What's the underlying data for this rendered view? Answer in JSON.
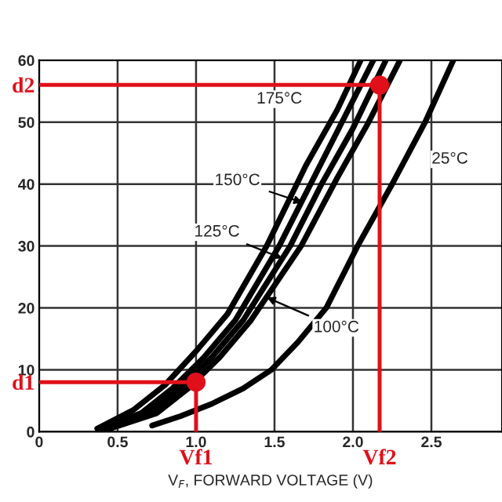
{
  "chart_data": {
    "type": "line",
    "xlabel": "V$_{F}$, FORWARD VOLTAGE (V)",
    "xlim": [
      0,
      2.95
    ],
    "xticks": [
      0,
      {
        "value": 0.5,
        "label": "0.5"
      },
      {
        "value": 1,
        "label": "1.0"
      },
      {
        "value": 1.5,
        "label": "1.5"
      },
      {
        "value": 2,
        "label": "2.0"
      },
      {
        "value": 2.5,
        "label": "2.5"
      }
    ],
    "ylim": [
      0,
      60
    ],
    "yticks": [
      0,
      10,
      20,
      30,
      40,
      50,
      60
    ],
    "grid": true,
    "marker": "none",
    "line_style": "solid",
    "series": [
      {
        "color": "#000000",
        "x": [
          0.37,
          0.6,
          0.8,
          1.0,
          1.2,
          1.45,
          1.7,
          1.9,
          2.05
        ],
        "values": [
          0.5,
          3.5,
          7.5,
          13,
          19,
          30,
          43,
          52,
          60
        ]
      },
      {
        "color": "#000000",
        "x": [
          0.4,
          0.65,
          0.85,
          1.05,
          1.25,
          1.53,
          1.75,
          1.95,
          2.13
        ],
        "values": [
          0.5,
          3,
          7,
          12,
          18,
          30,
          41,
          51,
          60
        ]
      },
      {
        "color": "#000000",
        "x": [
          0.42,
          0.7,
          0.9,
          1.1,
          1.3,
          1.6,
          1.8,
          2.0,
          2.21
        ],
        "values": [
          0.5,
          3,
          7,
          12,
          18,
          30,
          40,
          49,
          60
        ]
      },
      {
        "color": "#000000",
        "x": [
          0.45,
          0.75,
          0.95,
          1.15,
          1.35,
          1.67,
          1.9,
          2.1,
          2.3
        ],
        "values": [
          0.5,
          3,
          7,
          12,
          18,
          30,
          41,
          50,
          60
        ]
      },
      {
        "color": "#000000",
        "x": [
          0.72,
          0.9,
          1.1,
          1.3,
          1.48,
          1.65,
          1.83,
          2.03,
          2.25,
          2.46,
          2.64
        ],
        "values": [
          1,
          2.5,
          4.5,
          7,
          10,
          14.5,
          20,
          30,
          40,
          50,
          60
        ]
      },
      {
        "color": "#e0101a",
        "x": [
          0,
          1.0,
          1.0
        ],
        "values": [
          8,
          8,
          0
        ]
      },
      {
        "color": "#e0101a",
        "x": [
          0,
          2.17,
          2.17
        ],
        "values": [
          56,
          56,
          0
        ]
      },
      {
        "type": "scatter",
        "marker": "circle",
        "color": "#e0101a",
        "x": [
          1.0,
          2.17
        ],
        "values": [
          8,
          56
        ]
      }
    ],
    "annotations": [
      {
        "text": "175°C",
        "x": 1.92,
        "y": 53
      },
      {
        "text": "150°C",
        "x": 1.68,
        "y": 37
      },
      {
        "text": "125°C",
        "x": 1.55,
        "y": 28
      },
      {
        "text": "100°C",
        "x": 1.45,
        "y": 21.7
      },
      {
        "text": "25°C",
        "x": 2.34,
        "y": 44
      },
      {
        "text": "Vf1",
        "x": 1.0,
        "y": 0
      },
      {
        "text": "Vf2",
        "x": 2.17,
        "y": 0
      },
      {
        "text": "d1",
        "x": 0,
        "y": 8
      },
      {
        "text": "d2",
        "x": 0,
        "y": 56
      }
    ]
  }
}
